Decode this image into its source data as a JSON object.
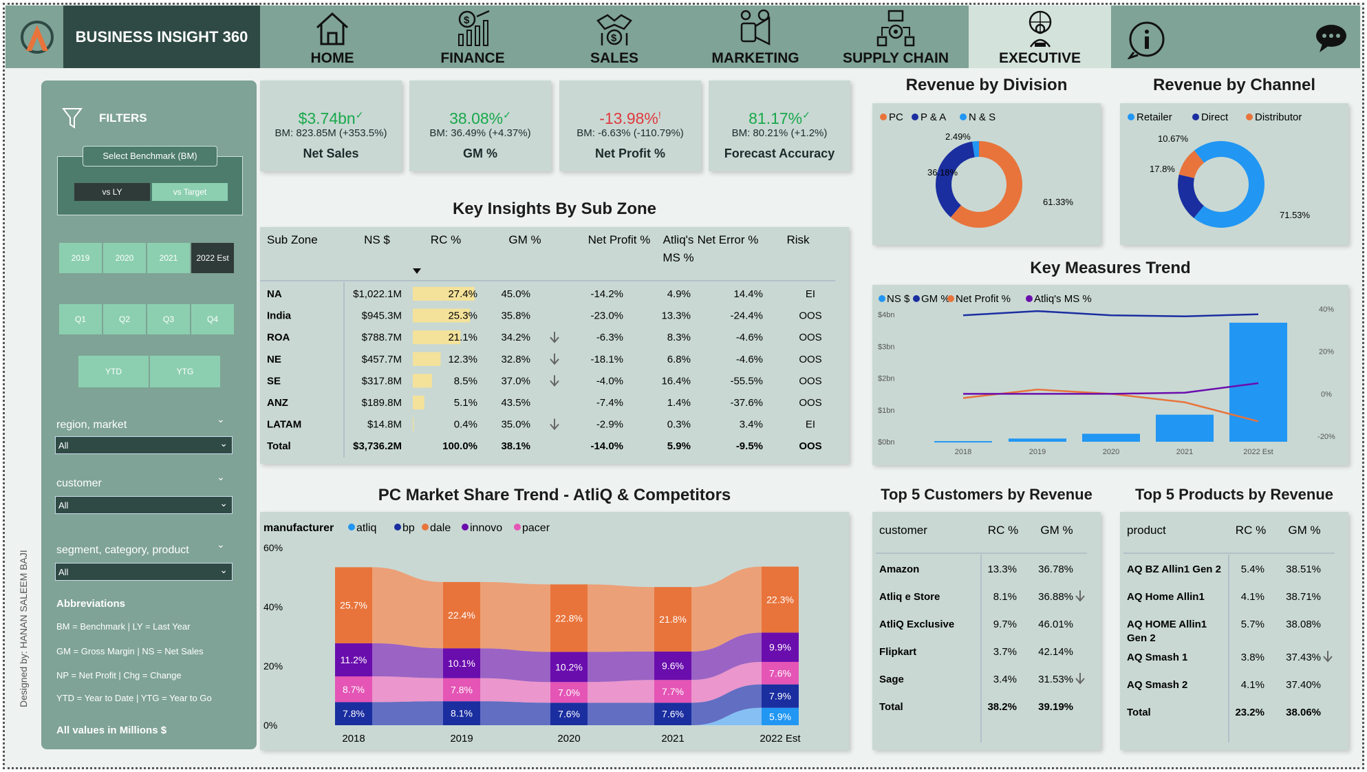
{
  "nav": {
    "brand": "BUSINESS INSIGHT 360",
    "items": [
      {
        "label": "HOME",
        "icon": "home-icon"
      },
      {
        "label": "FINANCE",
        "icon": "finance-icon"
      },
      {
        "label": "SALES",
        "icon": "handshake-icon"
      },
      {
        "label": "MARKETING",
        "icon": "marketing-icon"
      },
      {
        "label": "SUPPLY CHAIN",
        "icon": "supply-chain-icon"
      },
      {
        "label": "EXECUTIVE",
        "icon": "executive-icon",
        "active": true
      }
    ],
    "info_icon": "info-icon",
    "support_icon": "chat-support-icon"
  },
  "sidebar": {
    "filters": "FILTERS",
    "benchmark": "Select Benchmark (BM)",
    "vs_ly": "vs LY",
    "vs_target": "vs Target",
    "years": [
      "2019",
      "2020",
      "2021",
      "2022 Est"
    ],
    "quarters": [
      "Q1",
      "Q2",
      "Q3",
      "Q4"
    ],
    "ytd": "YTD",
    "ytg": "YTG",
    "region_label": "region, market",
    "region_value": "All",
    "customer_label": "customer",
    "customer_value": "All",
    "segment_label": "segment, category, product",
    "segment_value": "All",
    "abbr_title": "Abbreviations",
    "abbr": [
      "BM = Benchmark | LY = Last Year",
      "GM = Gross Margin | NS = Net Sales",
      "NP = Net Profit | Chg = Change",
      "YTD = Year to Date | YTG = Year to Go"
    ],
    "values_note": "All values in Millions $",
    "designer": "Designed by: HANAN SALEEM BAJI"
  },
  "kpis": [
    {
      "value": "$3.74bn",
      "mark": "✓",
      "bm": "BM: 823.85M (+353.5%)",
      "label": "Net Sales",
      "color": "#18a84a"
    },
    {
      "value": "38.08%",
      "mark": "✓",
      "bm": "BM: 36.49% (+4.37%)",
      "label": "GM %",
      "color": "#18a84a"
    },
    {
      "value": "-13.98%",
      "mark": "!",
      "bm": "BM: -6.63% (-110.79%)",
      "label": "Net Profit %",
      "color": "#e0383e"
    },
    {
      "value": "81.17%",
      "mark": "✓",
      "bm": "BM: 80.21% (+1.2%)",
      "label": "Forecast Accuracy",
      "color": "#18a84a"
    }
  ],
  "subzone": {
    "title": "Key Insights By Sub Zone",
    "headers": [
      "Sub Zone",
      "NS $",
      "RC %",
      "GM %",
      "Net Profit %",
      "Atliq's MS %",
      "Net Error %",
      "Risk"
    ],
    "rows": [
      {
        "zone": "NA",
        "ns": "$1,022.1M",
        "rc": "27.4%",
        "rcv": 27.4,
        "gm": "45.0%",
        "arrow": false,
        "np": "-14.2%",
        "ms": "4.9%",
        "ne": "14.4%",
        "risk": "EI"
      },
      {
        "zone": "India",
        "ns": "$945.3M",
        "rc": "25.3%",
        "rcv": 25.3,
        "gm": "35.8%",
        "arrow": false,
        "np": "-23.0%",
        "ms": "13.3%",
        "ne": "-24.4%",
        "risk": "OOS"
      },
      {
        "zone": "ROA",
        "ns": "$788.7M",
        "rc": "21.1%",
        "rcv": 21.1,
        "gm": "34.2%",
        "arrow": true,
        "np": "-6.3%",
        "ms": "8.3%",
        "ne": "-4.6%",
        "risk": "OOS"
      },
      {
        "zone": "NE",
        "ns": "$457.7M",
        "rc": "12.3%",
        "rcv": 12.3,
        "gm": "32.8%",
        "arrow": true,
        "np": "-18.1%",
        "ms": "6.8%",
        "ne": "-4.6%",
        "risk": "OOS"
      },
      {
        "zone": "SE",
        "ns": "$317.8M",
        "rc": "8.5%",
        "rcv": 8.5,
        "gm": "37.0%",
        "arrow": true,
        "np": "-4.0%",
        "ms": "16.4%",
        "ne": "-55.5%",
        "risk": "OOS"
      },
      {
        "zone": "ANZ",
        "ns": "$189.8M",
        "rc": "5.1%",
        "rcv": 5.1,
        "gm": "43.5%",
        "arrow": false,
        "np": "-7.4%",
        "ms": "1.4%",
        "ne": "-37.6%",
        "risk": "OOS"
      },
      {
        "zone": "LATAM",
        "ns": "$14.8M",
        "rc": "0.4%",
        "rcv": 0.4,
        "gm": "35.0%",
        "arrow": true,
        "np": "-2.9%",
        "ms": "0.3%",
        "ne": "3.4%",
        "risk": "EI"
      }
    ],
    "total": {
      "zone": "Total",
      "ns": "$3,736.2M",
      "rc": "100.0%",
      "gm": "38.1%",
      "np": "-14.0%",
      "ms": "5.9%",
      "ne": "-9.5%",
      "risk": "OOS"
    }
  },
  "chart_data": [
    {
      "type": "pie",
      "title": "Revenue by Division",
      "legend": [
        "PC",
        "P & A",
        "N & S"
      ],
      "values": [
        61.33,
        36.18,
        2.49
      ],
      "labels": [
        "61.33%",
        "36.18%",
        "2.49%"
      ],
      "colors": [
        "#e8743b",
        "#1a2ea0",
        "#2196f3"
      ]
    },
    {
      "type": "pie",
      "title": "Revenue by Channel",
      "legend": [
        "Retailer",
        "Direct",
        "Distributor"
      ],
      "values": [
        71.53,
        17.8,
        10.67
      ],
      "labels": [
        "71.53%",
        "17.8%",
        "10.67%"
      ],
      "colors": [
        "#2196f3",
        "#1a2ea0",
        "#e8743b"
      ]
    },
    {
      "type": "bar",
      "title": "Key Measures Trend",
      "legend": [
        "NS $",
        "GM %",
        "Net Profit %",
        "Atliq's MS %"
      ],
      "colors": [
        "#2196f3",
        "#1a2ea0",
        "#e8743b",
        "#6a0dad"
      ],
      "categories": [
        "2018",
        "2019",
        "2020",
        "2021",
        "2022 Est"
      ],
      "ns": [
        0.02,
        0.1,
        0.25,
        0.85,
        3.74
      ],
      "gm": [
        37,
        39,
        37,
        36.5,
        37.5
      ],
      "np": [
        -2,
        2,
        0,
        -4,
        -13
      ],
      "ms": [
        0,
        0,
        0,
        0.5,
        5
      ],
      "y_ticks": [
        "$0bn",
        "$1bn",
        "$2bn",
        "$3bn",
        "$4bn"
      ],
      "y2_ticks": [
        "-20%",
        "0%",
        "20%",
        "40%"
      ]
    },
    {
      "type": "area",
      "title": "PC Market Share Trend - AtliQ & Competitors",
      "legend_title": "manufacturer",
      "legend": [
        "atliq",
        "bp",
        "dale",
        "innovo",
        "pacer"
      ],
      "colors": {
        "atliq": "#2196f3",
        "bp": "#1a2ea0",
        "dale": "#e8743b",
        "innovo": "#6a0dad",
        "pacer": "#e455b5"
      },
      "categories": [
        "2018",
        "2019",
        "2020",
        "2021",
        "2022 Est"
      ],
      "y_ticks": [
        "0%",
        "20%",
        "40%",
        "60%"
      ],
      "series": {
        "dale": [
          25.7,
          22.4,
          22.8,
          21.8,
          22.3
        ],
        "innovo": [
          11.2,
          10.1,
          10.2,
          9.6,
          9.9
        ],
        "pacer": [
          8.7,
          7.8,
          7.0,
          7.7,
          7.6
        ],
        "bp": [
          7.8,
          8.1,
          7.6,
          7.6,
          7.9
        ],
        "atliq": [
          0,
          0,
          0,
          0,
          5.9
        ]
      },
      "labels": {
        "dale": [
          "25.7%",
          "22.4%",
          "22.8%",
          "21.8%",
          "22.3%"
        ],
        "innovo": [
          "11.2%",
          "10.1%",
          "10.2%",
          "9.6%",
          "9.9%"
        ],
        "pacer": [
          "8.7%",
          "7.8%",
          "7.0%",
          "7.7%",
          "7.6%"
        ],
        "bp": [
          "7.8%",
          "8.1%",
          "7.6%",
          "7.6%",
          "7.9%"
        ],
        "atliq": [
          "",
          "",
          "",
          "",
          "5.9%"
        ]
      }
    }
  ],
  "customers": {
    "title": "Top 5 Customers by Revenue",
    "headers": [
      "customer",
      "RC %",
      "GM %"
    ],
    "rows": [
      [
        "Amazon",
        "13.3%",
        "36.78%",
        false
      ],
      [
        "Atliq e Store",
        "8.1%",
        "36.88%",
        true
      ],
      [
        "AtliQ Exclusive",
        "9.7%",
        "46.01%",
        false
      ],
      [
        "Flipkart",
        "3.7%",
        "42.14%",
        false
      ],
      [
        "Sage",
        "3.4%",
        "31.53%",
        true
      ]
    ],
    "total": [
      "Total",
      "38.2%",
      "39.19%"
    ]
  },
  "products": {
    "title": "Top 5 Products by Revenue",
    "headers": [
      "product",
      "RC %",
      "GM %"
    ],
    "rows": [
      [
        "AQ BZ Allin1 Gen 2",
        "5.4%",
        "38.51%",
        false
      ],
      [
        "AQ Home Allin1",
        "4.1%",
        "38.71%",
        false
      ],
      [
        "AQ HOME Allin1 Gen 2",
        "5.7%",
        "38.08%",
        false
      ],
      [
        "AQ Smash 1",
        "3.8%",
        "37.43%",
        true
      ],
      [
        "AQ Smash 2",
        "4.1%",
        "37.40%",
        false
      ]
    ],
    "total": [
      "Total",
      "23.2%",
      "38.06%"
    ]
  }
}
